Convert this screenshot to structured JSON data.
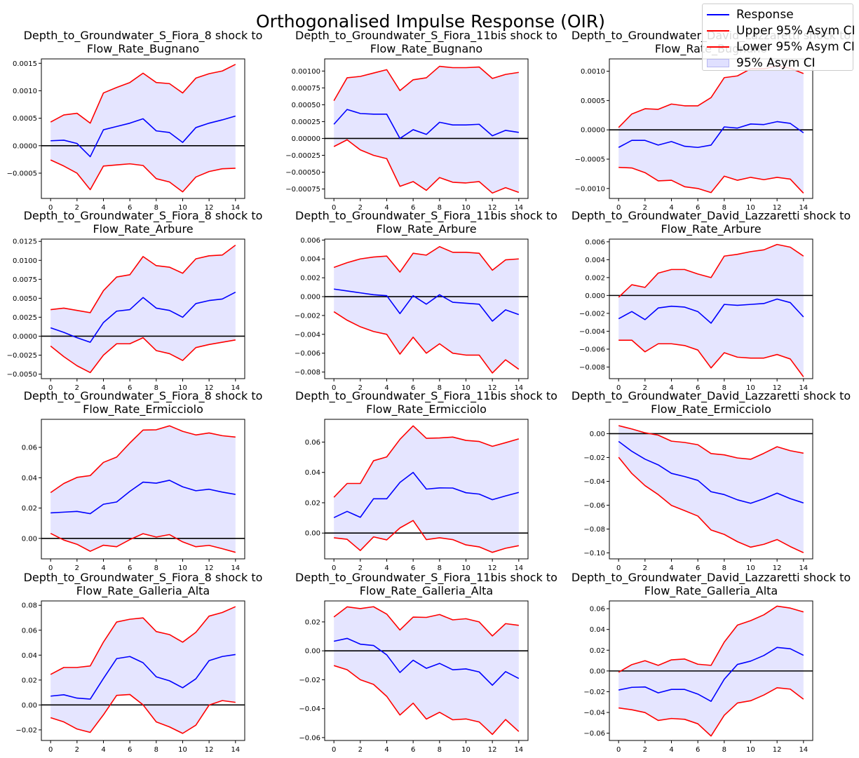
{
  "figure_title": "Orthogonalised Impulse Response (OIR)",
  "colors": {
    "response": "#0000ff",
    "ci": "#ff0000",
    "fill": "#e0e0ff",
    "zero": "#000000"
  },
  "legend": {
    "placement": "top-right",
    "entries": [
      {
        "label": "Response",
        "kind": "line",
        "color": "#0000ff"
      },
      {
        "label": "Upper 95% Asym CI",
        "kind": "line",
        "color": "#ff0000"
      },
      {
        "label": "Lower 95% Asym CI",
        "kind": "line",
        "color": "#ff0000"
      },
      {
        "label": "95% Asym CI",
        "kind": "fill",
        "color": "#e0e0ff"
      }
    ]
  },
  "chart_data": [
    {
      "type": "line",
      "title": "Depth_to_Groundwater_S_Fiora_8 shock to\nFlow_Rate_Bugnano",
      "x": [
        0,
        1,
        2,
        3,
        4,
        5,
        6,
        7,
        8,
        9,
        10,
        11,
        12,
        13,
        14
      ],
      "xticks": [
        0,
        2,
        4,
        6,
        8,
        10,
        12,
        14
      ],
      "ylim": [
        -0.00096,
        0.00158
      ],
      "yticks": [
        -0.0005,
        0,
        0.0005,
        0.001,
        0.0015
      ],
      "yticklabels": [
        "−0.0005",
        "0.0000",
        "0.0005",
        "0.0010",
        "0.0015"
      ],
      "response": [
        9e-05,
        0.0001,
        4e-05,
        -0.0002,
        0.00029,
        0.00035,
        0.00041,
        0.00049,
        0.00027,
        0.00024,
        6e-05,
        0.00033,
        0.00041,
        0.00047,
        0.00054
      ],
      "upper": [
        0.00043,
        0.00056,
        0.00059,
        0.00041,
        0.00096,
        0.00106,
        0.00115,
        0.00132,
        0.00115,
        0.00113,
        0.00096,
        0.00123,
        0.00131,
        0.00136,
        0.00148
      ],
      "lower": [
        -0.00026,
        -0.00037,
        -0.0005,
        -0.0008,
        -0.00037,
        -0.00035,
        -0.00033,
        -0.00036,
        -0.0006,
        -0.00066,
        -0.00084,
        -0.00057,
        -0.00047,
        -0.00042,
        -0.00041
      ]
    },
    {
      "type": "line",
      "title": "Depth_to_Groundwater_S_Fiora_11bis shock to\nFlow_Rate_Bugnano",
      "x": [
        0,
        1,
        2,
        3,
        4,
        5,
        6,
        7,
        8,
        9,
        10,
        11,
        12,
        13,
        14
      ],
      "xticks": [
        0,
        2,
        4,
        6,
        8,
        10,
        12,
        14
      ],
      "ylim": [
        -0.00089,
        0.00118
      ],
      "yticks": [
        -0.00075,
        -0.0005,
        -0.00025,
        0,
        0.00025,
        0.0005,
        0.00075,
        0.001
      ],
      "yticklabels": [
        "−0.00075",
        "−0.00050",
        "−0.00025",
        "0.00000",
        "0.00025",
        "0.00050",
        "0.00075",
        "0.00100"
      ],
      "response": [
        0.00021,
        0.00043,
        0.00037,
        0.00036,
        0.00036,
        0.0,
        0.00013,
        6e-05,
        0.00024,
        0.0002,
        0.0002,
        0.00021,
        4e-05,
        0.00012,
        9e-05
      ],
      "upper": [
        0.00056,
        0.0009,
        0.00092,
        0.00097,
        0.00102,
        0.00071,
        0.00087,
        0.0009,
        0.00107,
        0.00105,
        0.00105,
        0.00106,
        0.00089,
        0.00095,
        0.00098
      ],
      "lower": [
        -0.00012,
        -2e-05,
        -0.00017,
        -0.00025,
        -0.0003,
        -0.00071,
        -0.00064,
        -0.00077,
        -0.00058,
        -0.00065,
        -0.00066,
        -0.00064,
        -0.00081,
        -0.00073,
        -0.0008
      ]
    },
    {
      "type": "line",
      "title": "Depth_to_Groundwater_David_Lazzaretti shock to\nFlow_Rate_Bugnano",
      "x": [
        0,
        1,
        2,
        3,
        4,
        5,
        6,
        7,
        8,
        9,
        10,
        11,
        12,
        13,
        14
      ],
      "xticks": [
        0,
        2,
        4,
        6,
        8,
        10,
        12,
        14
      ],
      "ylim": [
        -0.00117,
        0.00121
      ],
      "yticks": [
        -0.001,
        -0.0005,
        0,
        0.0005,
        0.001
      ],
      "yticklabels": [
        "−0.0010",
        "−0.0005",
        "0.0000",
        "0.0005",
        "0.0010"
      ],
      "response": [
        -0.0003,
        -0.00018,
        -0.00018,
        -0.00026,
        -0.0002,
        -0.00028,
        -0.0003,
        -0.00026,
        5e-05,
        3e-05,
        0.0001,
        9e-05,
        0.00014,
        0.00011,
        -5e-05
      ],
      "upper": [
        4e-05,
        0.00027,
        0.00036,
        0.00035,
        0.00044,
        0.00041,
        0.00041,
        0.00055,
        0.00089,
        0.00092,
        0.00104,
        0.00104,
        0.00109,
        0.00105,
        0.00096
      ],
      "lower": [
        -0.00064,
        -0.00065,
        -0.00073,
        -0.00087,
        -0.00086,
        -0.00097,
        -0.001,
        -0.00107,
        -0.00079,
        -0.00086,
        -0.00081,
        -0.00085,
        -0.00081,
        -0.00084,
        -0.00108
      ]
    },
    {
      "type": "line",
      "title": "Depth_to_Groundwater_S_Fiora_8 shock to\nFlow_Rate_Arbure",
      "x": [
        0,
        1,
        2,
        3,
        4,
        5,
        6,
        7,
        8,
        9,
        10,
        11,
        12,
        13,
        14
      ],
      "xticks": [
        0,
        2,
        4,
        6,
        8,
        10,
        12,
        14
      ],
      "ylim": [
        -0.0056,
        0.0128
      ],
      "yticks": [
        -0.005,
        -0.0025,
        0,
        0.0025,
        0.005,
        0.0075,
        0.01,
        0.0125
      ],
      "yticklabels": [
        "−0.0050",
        "−0.0025",
        "0.0000",
        "0.0025",
        "0.0050",
        "0.0075",
        "0.0100",
        "0.0125"
      ],
      "response": [
        0.0011,
        0.0005,
        -0.0002,
        -0.0008,
        0.0018,
        0.0033,
        0.0035,
        0.0051,
        0.0037,
        0.0034,
        0.0025,
        0.0043,
        0.0047,
        0.0049,
        0.0058
      ],
      "upper": [
        0.0035,
        0.0037,
        0.0034,
        0.0031,
        0.006,
        0.0078,
        0.0081,
        0.0105,
        0.0093,
        0.0091,
        0.0083,
        0.0102,
        0.0106,
        0.0107,
        0.012
      ],
      "lower": [
        -0.0013,
        -0.0027,
        -0.0039,
        -0.0048,
        -0.0025,
        -0.001,
        -0.001,
        -0.0002,
        -0.0019,
        -0.0023,
        -0.0032,
        -0.0015,
        -0.0011,
        -0.0008,
        -0.0005
      ]
    },
    {
      "type": "line",
      "title": "Depth_to_Groundwater_S_Fiora_11bis shock to\nFlow_Rate_Arbure",
      "x": [
        0,
        1,
        2,
        3,
        4,
        5,
        6,
        7,
        8,
        9,
        10,
        11,
        12,
        13,
        14
      ],
      "xticks": [
        0,
        2,
        4,
        6,
        8,
        10,
        12,
        14
      ],
      "ylim": [
        -0.0087,
        0.0061
      ],
      "yticks": [
        -0.008,
        -0.006,
        -0.004,
        -0.002,
        0,
        0.002,
        0.004,
        0.006
      ],
      "yticklabels": [
        "−0.008",
        "−0.006",
        "−0.004",
        "−0.002",
        "0.000",
        "0.002",
        "0.004",
        "0.006"
      ],
      "response": [
        0.0008,
        0.0006,
        0.0004,
        0.0002,
        0.0001,
        -0.0018,
        0.0001,
        -0.0008,
        0.0002,
        -0.0006,
        -0.0007,
        -0.0008,
        -0.0026,
        -0.0014,
        -0.0019
      ],
      "upper": [
        0.0031,
        0.0036,
        0.004,
        0.0042,
        0.0043,
        0.0026,
        0.0046,
        0.0044,
        0.0053,
        0.0047,
        0.0047,
        0.0046,
        0.0028,
        0.0039,
        0.004
      ],
      "lower": [
        -0.0016,
        -0.0025,
        -0.0032,
        -0.0037,
        -0.004,
        -0.0061,
        -0.0043,
        -0.006,
        -0.005,
        -0.006,
        -0.0062,
        -0.0062,
        -0.0081,
        -0.0067,
        -0.0077
      ]
    },
    {
      "type": "line",
      "title": "Depth_to_Groundwater_David_Lazzaretti shock to\nFlow_Rate_Arbure",
      "x": [
        0,
        1,
        2,
        3,
        4,
        5,
        6,
        7,
        8,
        9,
        10,
        11,
        12,
        13,
        14
      ],
      "xticks": [
        0,
        2,
        4,
        6,
        8,
        10,
        12,
        14
      ],
      "ylim": [
        -0.0093,
        0.0063
      ],
      "yticks": [
        -0.008,
        -0.006,
        -0.004,
        -0.002,
        0,
        0.002,
        0.004,
        0.006
      ],
      "yticklabels": [
        "−0.008",
        "−0.006",
        "−0.004",
        "−0.002",
        "0.000",
        "0.002",
        "0.004",
        "0.006"
      ],
      "response": [
        -0.0026,
        -0.0018,
        -0.0027,
        -0.0014,
        -0.0012,
        -0.0013,
        -0.0018,
        -0.0031,
        -0.001,
        -0.0011,
        -0.001,
        -0.0009,
        -0.0004,
        -0.0008,
        -0.0024
      ],
      "upper": [
        -0.0002,
        0.0012,
        0.0009,
        0.0025,
        0.0029,
        0.0029,
        0.0024,
        0.002,
        0.0044,
        0.0046,
        0.0049,
        0.0051,
        0.0057,
        0.0054,
        0.0044
      ],
      "lower": [
        -0.005,
        -0.005,
        -0.0063,
        -0.0054,
        -0.0054,
        -0.0056,
        -0.0061,
        -0.0081,
        -0.0064,
        -0.0069,
        -0.007,
        -0.007,
        -0.0066,
        -0.0071,
        -0.0091
      ]
    },
    {
      "type": "line",
      "title": "Depth_to_Groundwater_S_Fiora_8 shock to\nFlow_Rate_Ermicciolo",
      "x": [
        0,
        1,
        2,
        3,
        4,
        5,
        6,
        7,
        8,
        9,
        10,
        11,
        12,
        13,
        14
      ],
      "xticks": [
        0,
        2,
        4,
        6,
        8,
        10,
        12,
        14
      ],
      "ylim": [
        -0.0135,
        0.0785
      ],
      "yticks": [
        0,
        0.02,
        0.04,
        0.06
      ],
      "yticklabels": [
        "0.00",
        "0.02",
        "0.04",
        "0.06"
      ],
      "response": [
        0.0168,
        0.0173,
        0.0178,
        0.0163,
        0.0225,
        0.024,
        0.031,
        0.0371,
        0.0364,
        0.0383,
        0.034,
        0.0314,
        0.0324,
        0.0305,
        0.029
      ],
      "upper": [
        0.0302,
        0.0362,
        0.0402,
        0.0414,
        0.0501,
        0.0536,
        0.0629,
        0.0714,
        0.0716,
        0.0742,
        0.0706,
        0.0682,
        0.0695,
        0.0677,
        0.0668
      ],
      "lower": [
        0.0033,
        -0.0011,
        -0.0039,
        -0.0085,
        -0.0045,
        -0.0055,
        -0.0008,
        0.0031,
        0.0009,
        0.0025,
        -0.0023,
        -0.0055,
        -0.0046,
        -0.0068,
        -0.0092
      ]
    },
    {
      "type": "line",
      "title": "Depth_to_Groundwater_S_Fiora_11bis shock to\nFlow_Rate_Ermicciolo",
      "x": [
        0,
        1,
        2,
        3,
        4,
        5,
        6,
        7,
        8,
        9,
        10,
        11,
        12,
        13,
        14
      ],
      "xticks": [
        0,
        2,
        4,
        6,
        8,
        10,
        12,
        14
      ],
      "ylim": [
        -0.017,
        0.075
      ],
      "yticks": [
        0,
        0.02,
        0.04,
        0.06
      ],
      "yticklabels": [
        "0.00",
        "0.02",
        "0.04",
        "0.06"
      ],
      "response": [
        0.0102,
        0.0143,
        0.0104,
        0.0226,
        0.0226,
        0.0334,
        0.04,
        0.029,
        0.0298,
        0.0297,
        0.0266,
        0.0257,
        0.022,
        0.0245,
        0.0268
      ],
      "upper": [
        0.0236,
        0.0327,
        0.0327,
        0.0477,
        0.0502,
        0.0618,
        0.0707,
        0.0625,
        0.0627,
        0.0633,
        0.0611,
        0.0604,
        0.0572,
        0.0596,
        0.0621
      ],
      "lower": [
        -0.0031,
        -0.0041,
        -0.0115,
        -0.0025,
        -0.0045,
        0.0034,
        0.0083,
        -0.0043,
        -0.0031,
        -0.0043,
        -0.0078,
        -0.0091,
        -0.0127,
        -0.01,
        -0.0083
      ]
    },
    {
      "type": "line",
      "title": "Depth_to_Groundwater_David_Lazzaretti shock to\nFlow_Rate_Ermicciolo",
      "x": [
        0,
        1,
        2,
        3,
        4,
        5,
        6,
        7,
        8,
        9,
        10,
        11,
        12,
        13,
        14
      ],
      "xticks": [
        0,
        2,
        4,
        6,
        8,
        10,
        12,
        14
      ],
      "ylim": [
        -0.105,
        0.012
      ],
      "yticks": [
        -0.1,
        -0.08,
        -0.06,
        -0.04,
        -0.02,
        0
      ],
      "yticklabels": [
        "−0.10",
        "−0.08",
        "−0.06",
        "−0.04",
        "−0.02",
        "0.00"
      ],
      "response": [
        -0.0065,
        -0.0148,
        -0.0214,
        -0.0262,
        -0.0333,
        -0.036,
        -0.0392,
        -0.0487,
        -0.0511,
        -0.0555,
        -0.0584,
        -0.0546,
        -0.0499,
        -0.0545,
        -0.0581
      ],
      "upper": [
        0.0067,
        0.0039,
        0.0007,
        -0.0013,
        -0.0063,
        -0.0074,
        -0.0093,
        -0.0167,
        -0.0178,
        -0.0204,
        -0.0215,
        -0.0165,
        -0.011,
        -0.0143,
        -0.0164
      ],
      "lower": [
        -0.0198,
        -0.0334,
        -0.0436,
        -0.0511,
        -0.0602,
        -0.0646,
        -0.0691,
        -0.0808,
        -0.0845,
        -0.0906,
        -0.0952,
        -0.0928,
        -0.0888,
        -0.0947,
        -0.0998
      ]
    },
    {
      "type": "line",
      "title": "Depth_to_Groundwater_S_Fiora_8 shock to\nFlow_Rate_Galleria_Alta",
      "x": [
        0,
        1,
        2,
        3,
        4,
        5,
        6,
        7,
        8,
        9,
        10,
        11,
        12,
        13,
        14
      ],
      "xticks": [
        0,
        2,
        4,
        6,
        8,
        10,
        12,
        14
      ],
      "ylim": [
        -0.0285,
        0.0835
      ],
      "yticks": [
        -0.02,
        0,
        0.02,
        0.04,
        0.06,
        0.08
      ],
      "yticklabels": [
        "−0.02",
        "0.00",
        "0.02",
        "0.04",
        "0.06",
        "0.08"
      ],
      "response": [
        0.0071,
        0.0082,
        0.0055,
        0.0047,
        0.0213,
        0.0372,
        0.0389,
        0.0339,
        0.0226,
        0.0194,
        0.0138,
        0.021,
        0.0356,
        0.0389,
        0.0405
      ],
      "upper": [
        0.0245,
        0.0301,
        0.0301,
        0.0313,
        0.0505,
        0.0666,
        0.0688,
        0.0699,
        0.0589,
        0.0565,
        0.0504,
        0.0583,
        0.0713,
        0.0742,
        0.0789
      ],
      "lower": [
        -0.0102,
        -0.0136,
        -0.0193,
        -0.022,
        -0.0079,
        0.0077,
        0.0084,
        0.0001,
        -0.0136,
        -0.0176,
        -0.0228,
        -0.0162,
        -0.0001,
        0.0035,
        0.0021
      ]
    },
    {
      "type": "line",
      "title": "Depth_to_Groundwater_S_Fiora_11bis shock to\nFlow_Rate_Galleria_Alta",
      "x": [
        0,
        1,
        2,
        3,
        4,
        5,
        6,
        7,
        8,
        9,
        10,
        11,
        12,
        13,
        14
      ],
      "xticks": [
        0,
        2,
        4,
        6,
        8,
        10,
        12,
        14
      ],
      "ylim": [
        -0.062,
        0.0345
      ],
      "yticks": [
        -0.06,
        -0.04,
        -0.02,
        0,
        0.02
      ],
      "yticklabels": [
        "−0.06",
        "−0.04",
        "−0.02",
        "0.00",
        "0.02"
      ],
      "response": [
        0.0066,
        0.0086,
        0.0046,
        0.0037,
        -0.0028,
        -0.015,
        -0.0065,
        -0.0121,
        -0.0087,
        -0.0131,
        -0.0125,
        -0.0146,
        -0.0238,
        -0.0144,
        -0.0191
      ],
      "upper": [
        0.0234,
        0.0304,
        0.0292,
        0.0305,
        0.0254,
        0.0144,
        0.0233,
        0.0231,
        0.0251,
        0.0214,
        0.0222,
        0.02,
        0.0103,
        0.0188,
        0.0176
      ],
      "lower": [
        -0.0102,
        -0.0131,
        -0.02,
        -0.0232,
        -0.0315,
        -0.0444,
        -0.0362,
        -0.0472,
        -0.0425,
        -0.0477,
        -0.0471,
        -0.0492,
        -0.0578,
        -0.0475,
        -0.0558
      ]
    },
    {
      "type": "line",
      "title": "Depth_to_Groundwater_David_Lazzaretti shock to\nFlow_Rate_Galleria_Alta",
      "x": [
        0,
        1,
        2,
        3,
        4,
        5,
        6,
        7,
        8,
        9,
        10,
        11,
        12,
        13,
        14
      ],
      "xticks": [
        0,
        2,
        4,
        6,
        8,
        10,
        12,
        14
      ],
      "ylim": [
        -0.067,
        0.0675
      ],
      "yticks": [
        -0.06,
        -0.04,
        -0.02,
        0,
        0.02,
        0.04,
        0.06
      ],
      "yticklabels": [
        "−0.06",
        "−0.04",
        "−0.02",
        "0.00",
        "0.02",
        "0.04",
        "0.06"
      ],
      "response": [
        -0.0184,
        -0.0158,
        -0.0154,
        -0.0211,
        -0.0178,
        -0.0178,
        -0.0223,
        -0.0293,
        -0.008,
        0.0063,
        0.0095,
        0.0149,
        0.0227,
        0.0214,
        0.0151
      ],
      "upper": [
        -0.0012,
        0.0061,
        0.0099,
        0.0054,
        0.0107,
        0.0115,
        0.0065,
        0.0054,
        0.0278,
        0.0442,
        0.0485,
        0.0541,
        0.0625,
        0.0606,
        0.0569
      ],
      "lower": [
        -0.0356,
        -0.0374,
        -0.0401,
        -0.0477,
        -0.0458,
        -0.0466,
        -0.0509,
        -0.0627,
        -0.0427,
        -0.0309,
        -0.0287,
        -0.0232,
        -0.0162,
        -0.0175,
        -0.0272
      ]
    }
  ]
}
